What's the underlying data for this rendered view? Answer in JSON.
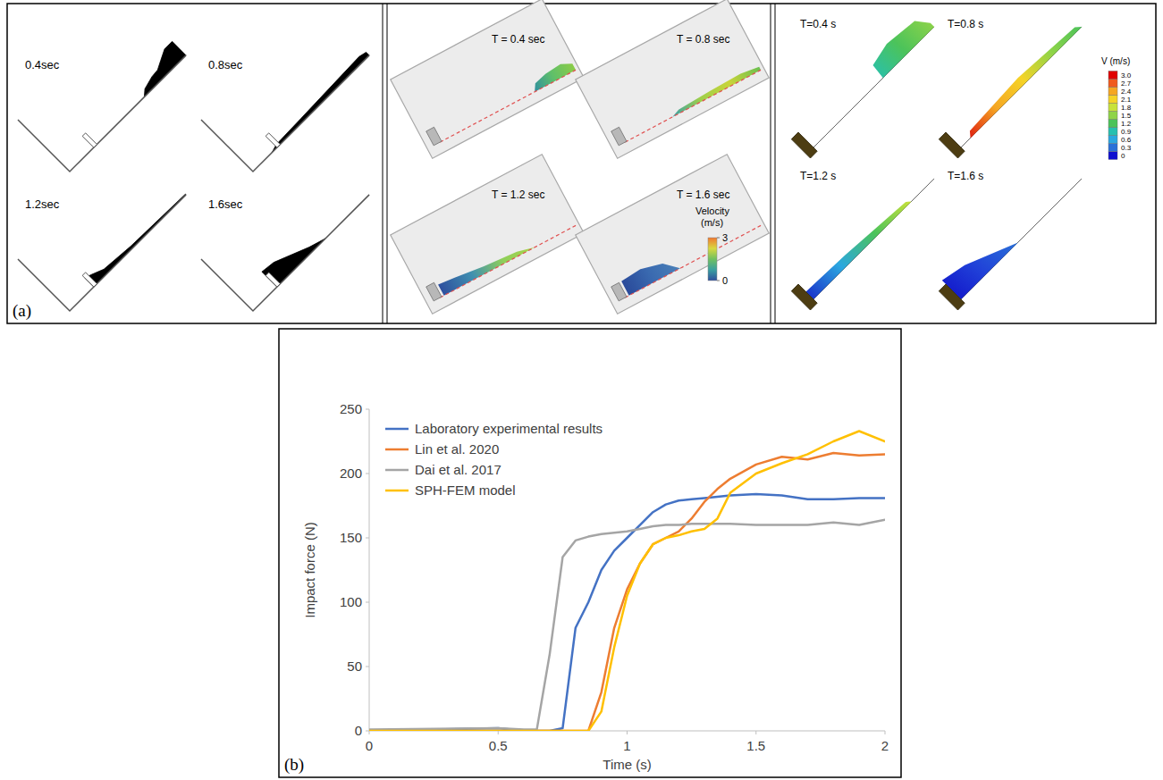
{
  "panel_labels": [
    "(a)",
    "(b)"
  ],
  "panel_a": {
    "left": {
      "labels": [
        "0.4sec",
        "0.8sec",
        "1.2sec",
        "1.6sec"
      ]
    },
    "middle": {
      "labels": [
        "T = 0.4 sec",
        "T = 0.8 sec",
        "T = 1.2 sec",
        "T = 1.6 sec"
      ],
      "colorbar": {
        "title": "Velocity (m/s)",
        "range": [
          0,
          3
        ],
        "ticks": [
          0,
          3
        ]
      }
    },
    "right": {
      "labels": [
        "T=0.4 s",
        "T=0.8 s",
        "T=1.2 s",
        "T=1.6 s"
      ],
      "colorbar": {
        "title": "V (m/s)",
        "range": [
          0,
          3
        ],
        "ticks": [
          0,
          0.3,
          0.6,
          0.9,
          1.2,
          1.5,
          1.8,
          2.1,
          2.4,
          2.7,
          {
            "value": 3,
            "label": "3.0"
          }
        ]
      }
    }
  },
  "chart_data": {
    "type": "line",
    "x_label": "Time (s)",
    "y_label": "Impact force (N)",
    "x": [
      0,
      0.5,
      0.6,
      0.65,
      0.7,
      0.75,
      0.8,
      0.85,
      0.9,
      0.95,
      1.0,
      1.05,
      1.1,
      1.15,
      1.2,
      1.25,
      1.3,
      1.35,
      1.4,
      1.5,
      1.6,
      1.7,
      1.8,
      1.9,
      2.0
    ],
    "xlim": [
      0,
      2
    ],
    "xticks": [
      0,
      0.5,
      1,
      1.5,
      2
    ],
    "ylim": [
      0,
      250
    ],
    "yticks": [
      0,
      50,
      100,
      150,
      200,
      250
    ],
    "grid": false,
    "legend": "upper left",
    "series": [
      {
        "name": "Laboratory experimental results",
        "color": "#4472c4",
        "values": [
          0,
          2,
          0,
          0,
          0,
          2,
          80,
          100,
          125,
          140,
          150,
          160,
          170,
          176,
          179,
          180,
          181,
          182,
          183,
          184,
          183,
          180,
          180,
          181,
          181
        ]
      },
      {
        "name": "Lin et al. 2020",
        "color": "#ed7d31",
        "values": [
          0,
          0,
          0,
          0,
          0,
          0,
          0,
          0,
          30,
          80,
          110,
          130,
          145,
          150,
          155,
          165,
          178,
          188,
          196,
          207,
          213,
          211,
          216,
          214,
          215
        ]
      },
      {
        "name": "Dai et al. 2017",
        "color": "#a5a5a5",
        "values": [
          1,
          2,
          1,
          1,
          60,
          135,
          148,
          151,
          153,
          154,
          155,
          157,
          159,
          160,
          160,
          161,
          161,
          161,
          161,
          160,
          160,
          160,
          162,
          160,
          164
        ]
      },
      {
        "name": "SPH-FEM model",
        "color": "#ffc000",
        "values": [
          0,
          0,
          0,
          0,
          0,
          0,
          0,
          0,
          15,
          65,
          105,
          130,
          145,
          150,
          152,
          155,
          157,
          165,
          185,
          200,
          208,
          215,
          225,
          233,
          225
        ]
      }
    ]
  }
}
